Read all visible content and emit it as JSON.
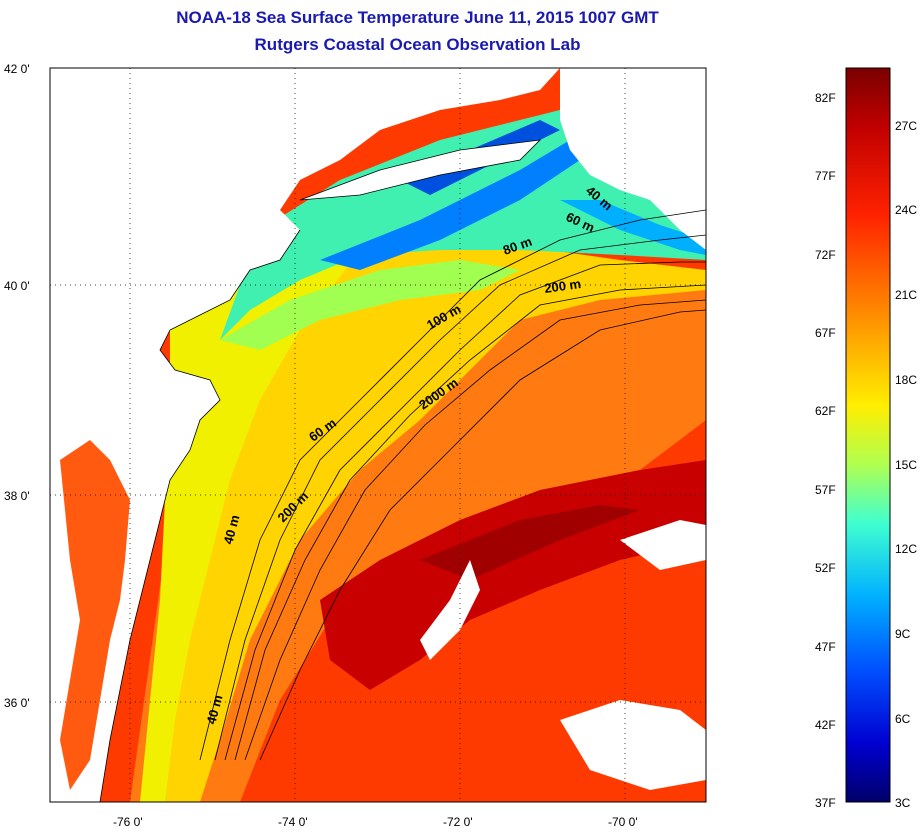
{
  "title": {
    "line1": "NOAA-18 Sea Surface Temperature June 11, 2015 1007 GMT",
    "line2": "Rutgers Coastal Ocean Observation Lab"
  },
  "map": {
    "lat_ticks": [
      "42 0'",
      "40 0'",
      "38 0'",
      "36 0'"
    ],
    "lon_ticks": [
      "-76 0'",
      "-74 0'",
      "-72 0'",
      "-70 0'"
    ],
    "contour_labels": [
      "40 m",
      "60 m",
      "80 m",
      "200 m",
      "100 m",
      "2000 m",
      "60 m",
      "200 m",
      "40 m",
      "40 m"
    ]
  },
  "colorbar": {
    "f_labels": [
      "82F",
      "77F",
      "72F",
      "67F",
      "62F",
      "57F",
      "52F",
      "47F",
      "42F",
      "37F"
    ],
    "c_labels": [
      "27C",
      "24C",
      "21C",
      "18C",
      "15C",
      "12C",
      "9C",
      "6C",
      "3C"
    ],
    "colors": [
      "#7a0000",
      "#c00000",
      "#ff1a00",
      "#ff6a00",
      "#ffaa00",
      "#ffe000",
      "#c8ff40",
      "#40ffc0",
      "#00c0ff",
      "#0060ff",
      "#0000d0",
      "#00007a"
    ]
  }
}
